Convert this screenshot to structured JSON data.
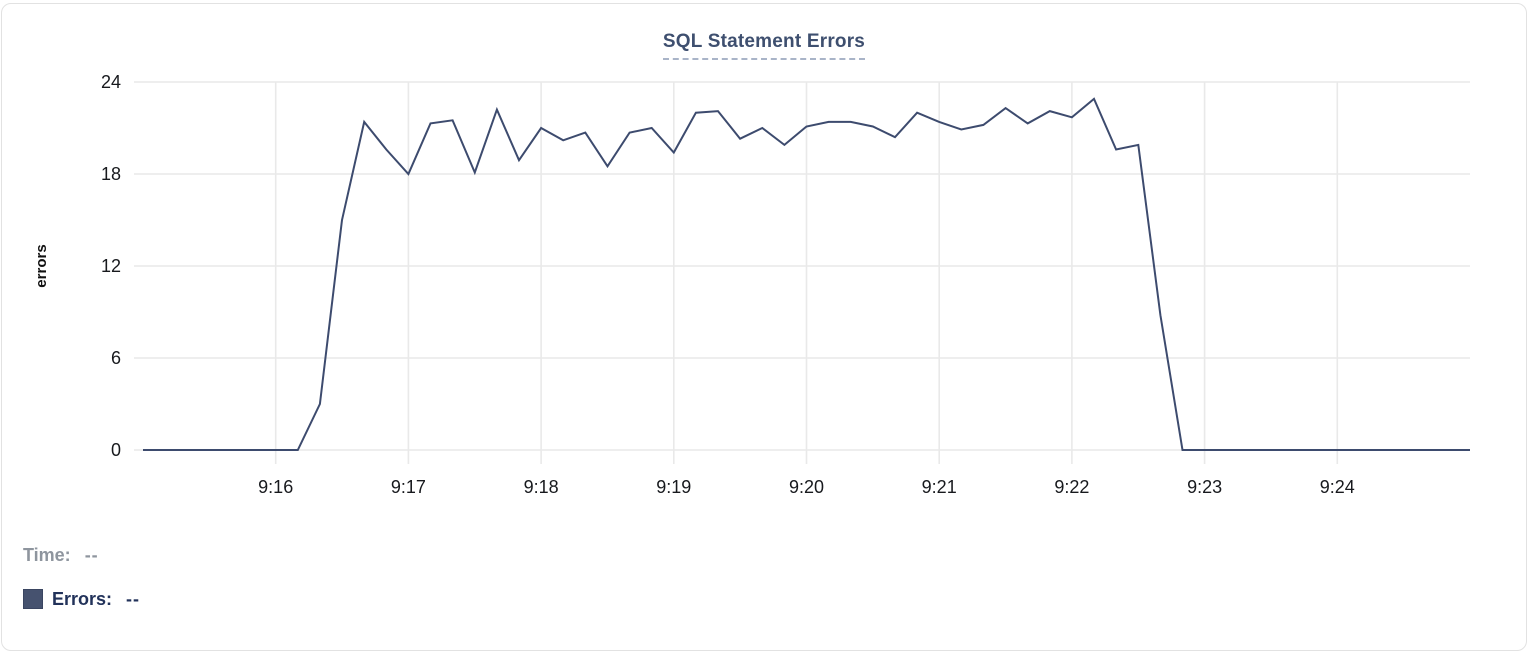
{
  "title": {
    "text": "SQL Statement Errors"
  },
  "legend": {
    "time_label": "Time:",
    "time_value": "--",
    "errors_label": "Errors:",
    "errors_value": "--",
    "swatch_color": "#46526f"
  },
  "colors": {
    "accent_navy": "#3d4b6e",
    "grid": "#e9e9e9",
    "tick_text": "#17191d",
    "title_text": "#3e4f6f",
    "muted_text": "#8e959e"
  },
  "chart_data": {
    "type": "line",
    "title": "SQL Statement Errors",
    "xlabel": "",
    "ylabel": "errors",
    "ylim": [
      0,
      24
    ],
    "yticks": [
      0,
      6,
      12,
      18,
      24
    ],
    "xticks": [
      "9:16",
      "9:17",
      "9:18",
      "9:19",
      "9:20",
      "9:21",
      "9:22",
      "9:23",
      "9:24"
    ],
    "x_range": [
      "9:15:00",
      "9:25:00"
    ],
    "grid": true,
    "legend_position": "bottom-left",
    "line_color": "#3d4b6e",
    "series": [
      {
        "name": "Errors",
        "points": [
          [
            "9:15:00",
            0
          ],
          [
            "9:15:10",
            0
          ],
          [
            "9:15:20",
            0
          ],
          [
            "9:15:30",
            0
          ],
          [
            "9:15:40",
            0
          ],
          [
            "9:15:50",
            0
          ],
          [
            "9:16:00",
            0
          ],
          [
            "9:16:10",
            0
          ],
          [
            "9:16:20",
            3
          ],
          [
            "9:16:30",
            15
          ],
          [
            "9:16:40",
            21.4
          ],
          [
            "9:16:50",
            19.6
          ],
          [
            "9:17:00",
            18
          ],
          [
            "9:17:10",
            21.3
          ],
          [
            "9:17:20",
            21.5
          ],
          [
            "9:17:30",
            18.1
          ],
          [
            "9:17:40",
            22.2
          ],
          [
            "9:17:50",
            18.9
          ],
          [
            "9:18:00",
            21
          ],
          [
            "9:18:10",
            20.2
          ],
          [
            "9:18:20",
            20.7
          ],
          [
            "9:18:30",
            18.5
          ],
          [
            "9:18:40",
            20.7
          ],
          [
            "9:18:50",
            21
          ],
          [
            "9:19:00",
            19.4
          ],
          [
            "9:19:10",
            22
          ],
          [
            "9:19:20",
            22.1
          ],
          [
            "9:19:30",
            20.3
          ],
          [
            "9:19:40",
            21
          ],
          [
            "9:19:50",
            19.9
          ],
          [
            "9:20:00",
            21.1
          ],
          [
            "9:20:10",
            21.4
          ],
          [
            "9:20:20",
            21.4
          ],
          [
            "9:20:30",
            21.1
          ],
          [
            "9:20:40",
            20.4
          ],
          [
            "9:20:50",
            22
          ],
          [
            "9:21:00",
            21.4
          ],
          [
            "9:21:10",
            20.9
          ],
          [
            "9:21:20",
            21.2
          ],
          [
            "9:21:30",
            22.3
          ],
          [
            "9:21:40",
            21.3
          ],
          [
            "9:21:50",
            22.1
          ],
          [
            "9:22:00",
            21.7
          ],
          [
            "9:22:10",
            22.9
          ],
          [
            "9:22:20",
            19.6
          ],
          [
            "9:22:30",
            19.9
          ],
          [
            "9:22:40",
            8.8
          ],
          [
            "9:22:50",
            0
          ],
          [
            "9:23:00",
            0
          ],
          [
            "9:23:10",
            0
          ],
          [
            "9:23:20",
            0
          ],
          [
            "9:23:30",
            0
          ],
          [
            "9:23:40",
            0
          ],
          [
            "9:23:50",
            0
          ],
          [
            "9:24:00",
            0
          ],
          [
            "9:24:10",
            0
          ],
          [
            "9:24:20",
            0
          ],
          [
            "9:24:30",
            0
          ],
          [
            "9:24:40",
            0
          ],
          [
            "9:24:50",
            0
          ],
          [
            "9:25:00",
            0
          ]
        ]
      }
    ]
  }
}
